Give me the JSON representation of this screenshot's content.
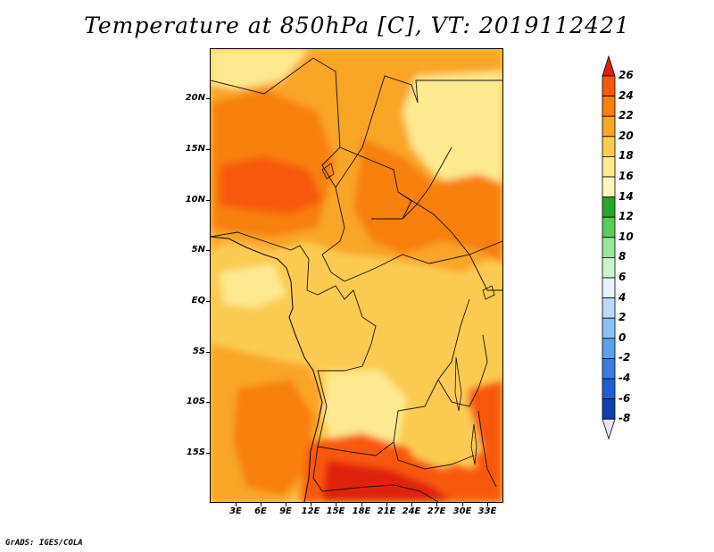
{
  "title": "Temperature at 850hPa [C], VT: 2019112421",
  "credit": "GrADS: IGES/COLA",
  "map": {
    "region": "Central Africa",
    "lat_labels": [
      "20N",
      "15N",
      "10N",
      "5N",
      "EQ",
      "5S",
      "10S",
      "15S"
    ],
    "lon_labels": [
      "3E",
      "6E",
      "9E",
      "12E",
      "15E",
      "18E",
      "21E",
      "24E",
      "27E",
      "30E",
      "33E"
    ],
    "field": "Temperature at 850hPa",
    "units": "C"
  },
  "colorbar": {
    "labels": [
      "26",
      "24",
      "22",
      "20",
      "18",
      "16",
      "14",
      "12",
      "10",
      "8",
      "6",
      "4",
      "2",
      "0",
      "-2",
      "-4",
      "-6",
      "-8"
    ],
    "colors": [
      "#e0200b",
      "#f8580a",
      "#f8800f",
      "#f9a526",
      "#fbcb51",
      "#fde98f",
      "#fef6bb",
      "#2aa52a",
      "#5bcc5b",
      "#99e699",
      "#ccf2cc",
      "#e6f2ff",
      "#bbdaf8",
      "#8ec0f2",
      "#5d9fe8",
      "#3a7fdf",
      "#1f5ed0",
      "#1040b0",
      "#0a2a8a",
      "#061870"
    ],
    "top_triangle_color": "#e0200b",
    "bottom_triangle_color": "#e6e6ff"
  }
}
